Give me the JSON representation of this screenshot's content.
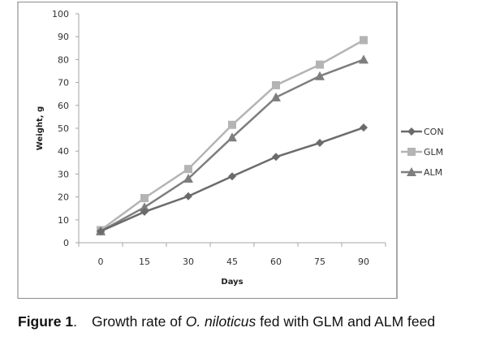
{
  "chart_data": {
    "type": "line",
    "title": "",
    "xlabel": "Days",
    "ylabel": "Weight, g",
    "categories": [
      "0",
      "15",
      "30",
      "45",
      "60",
      "75",
      "90"
    ],
    "x": [
      0,
      15,
      30,
      45,
      60,
      75,
      90
    ],
    "ylim": [
      0,
      100
    ],
    "yticks": [
      0,
      10,
      20,
      30,
      40,
      50,
      60,
      70,
      80,
      90,
      100
    ],
    "grid": false,
    "legend_position": "right",
    "series": [
      {
        "name": "CON",
        "marker": "diamond",
        "color": "#6b6b6b",
        "values": [
          5,
          13.5,
          20.3,
          29,
          37.5,
          43.6,
          50.3
        ]
      },
      {
        "name": "GLM",
        "marker": "square",
        "color": "#b4b4b4",
        "values": [
          5.5,
          19.5,
          32.2,
          51.5,
          68.8,
          77.8,
          88.5
        ]
      },
      {
        "name": "ALM",
        "marker": "triangle",
        "color": "#7e7e7e",
        "values": [
          5,
          15.5,
          28,
          46,
          63.5,
          72.8,
          80
        ]
      }
    ]
  },
  "caption": {
    "label": "Figure 1",
    "label_punct": ".",
    "text_before": "Growth rate of ",
    "species": "O. niloticus",
    "text_after": " fed with GLM and ALM  feed"
  }
}
